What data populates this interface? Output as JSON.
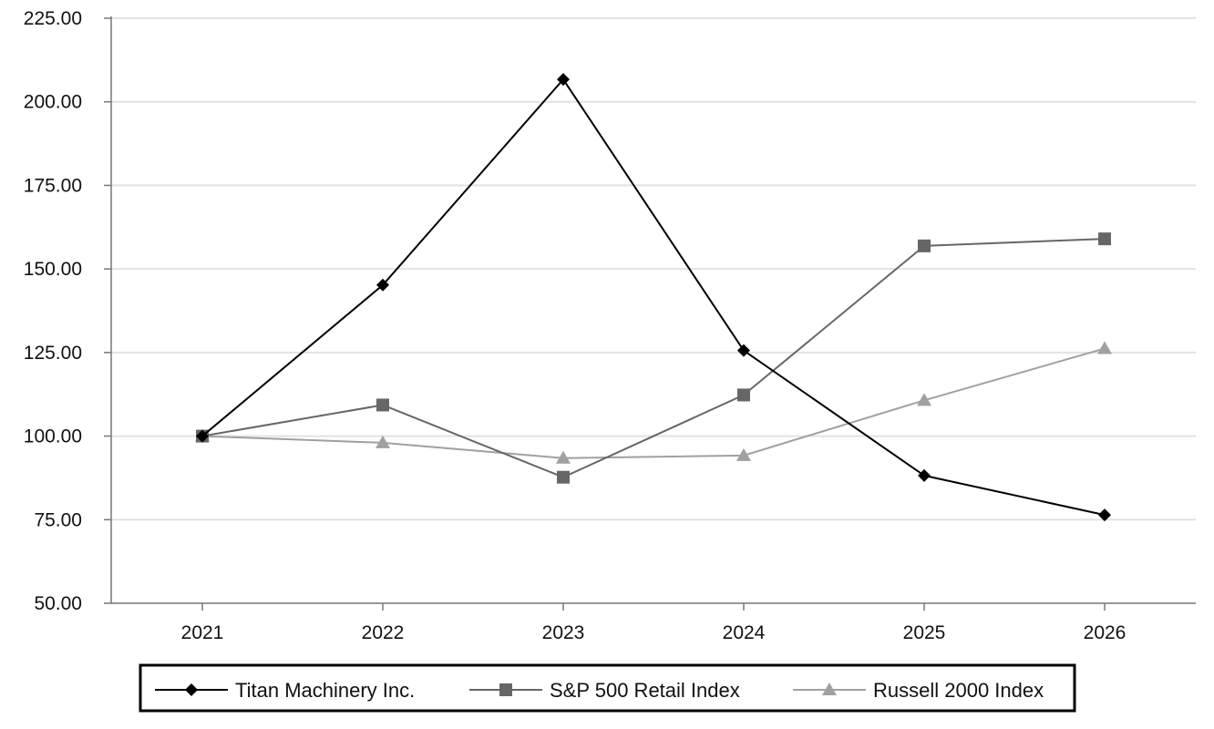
{
  "chart_data": {
    "type": "line",
    "title": "",
    "xlabel": "",
    "ylabel": "",
    "categories": [
      "2021",
      "2022",
      "2023",
      "2024",
      "2025",
      "2026"
    ],
    "ylim": [
      50,
      225
    ],
    "yticks": [
      "50.00",
      "75.00",
      "100.00",
      "125.00",
      "150.00",
      "175.00",
      "200.00",
      "225.00"
    ],
    "grid": "horizontal",
    "legend_position": "bottom",
    "series": [
      {
        "name": "Titan Machinery Inc.",
        "marker": "diamond",
        "color": "#000000",
        "values": [
          100.0,
          145.2,
          206.7,
          125.6,
          88.2,
          76.4
        ]
      },
      {
        "name": "S&P 500 Retail Index",
        "marker": "square",
        "color": "#666666",
        "values": [
          100.0,
          109.3,
          87.7,
          112.3,
          156.9,
          159.0
        ]
      },
      {
        "name": "Russell 2000 Index",
        "marker": "triangle",
        "color": "#a0a0a0",
        "values": [
          100.0,
          98.0,
          93.4,
          94.2,
          110.7,
          126.2
        ]
      }
    ]
  }
}
